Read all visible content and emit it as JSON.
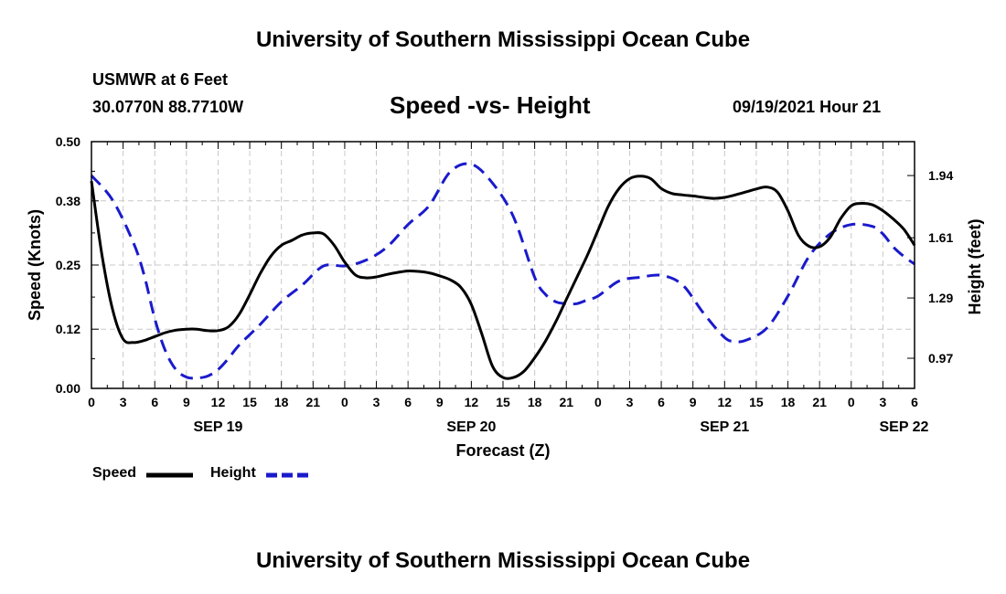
{
  "header": {
    "organization": "University of Southern Mississippi Ocean Cube",
    "station": "USMWR at 6 Feet",
    "coordinates": "30.0770N  88.7710W",
    "timestamp": "09/19/2021 Hour 21"
  },
  "footer": {
    "organization": "University of Southern Mississippi Ocean Cube"
  },
  "chart_data": {
    "type": "line",
    "title": "Speed -vs- Height",
    "xlabel": "Forecast (Z)",
    "ylabel": "Speed (Knots)",
    "y2label": "Height (feet)",
    "x_range_hours": [
      0,
      78
    ],
    "x_tick_labels": [
      "0",
      "3",
      "6",
      "9",
      "12",
      "15",
      "18",
      "21",
      "0",
      "3",
      "6",
      "9",
      "12",
      "15",
      "18",
      "21",
      "0",
      "3",
      "6",
      "9",
      "12",
      "15",
      "18",
      "21",
      "0",
      "3",
      "6"
    ],
    "x_tick_step_hours": 3,
    "date_labels": [
      {
        "label": "SEP 19",
        "hour": 12
      },
      {
        "label": "SEP 20",
        "hour": 36
      },
      {
        "label": "SEP 21",
        "hour": 60
      },
      {
        "label": "SEP 22",
        "hour": 77
      }
    ],
    "ylim": [
      0,
      0.5
    ],
    "y_ticks": [
      0.0,
      0.12,
      0.25,
      0.38,
      0.5
    ],
    "y_tick_labels": [
      "0.00",
      "0.12",
      "0.25",
      "0.38",
      "0.50"
    ],
    "y2lim": [
      0.81,
      2.12
    ],
    "y2_ticks": [
      0.97,
      1.29,
      1.61,
      1.94
    ],
    "y2_tick_labels": [
      "0.97",
      "1.29",
      "1.61",
      "1.94"
    ],
    "grid": true,
    "legend_position": "bottom-left",
    "series": [
      {
        "name": "Speed",
        "axis": "left",
        "color": "#000000",
        "dash": "solid",
        "x": [
          0,
          1,
          2,
          3,
          4,
          5,
          6,
          7,
          8,
          9,
          10,
          11,
          12,
          13,
          14,
          15,
          16,
          17,
          18,
          19,
          20,
          21,
          22,
          23,
          24,
          25,
          26,
          27,
          28,
          29,
          30,
          31,
          32,
          33,
          34,
          35,
          36,
          37,
          38,
          39,
          40,
          41,
          42,
          43,
          44,
          45,
          46,
          47,
          48,
          49,
          50,
          51,
          52,
          53,
          54,
          55,
          56,
          57,
          58,
          59,
          60,
          61,
          62,
          63,
          64,
          65,
          66,
          67,
          68,
          69,
          70,
          71,
          72,
          73,
          74,
          75,
          76,
          77,
          78
        ],
        "values": [
          0.42,
          0.27,
          0.16,
          0.1,
          0.093,
          0.097,
          0.105,
          0.113,
          0.118,
          0.12,
          0.12,
          0.117,
          0.117,
          0.125,
          0.15,
          0.19,
          0.233,
          0.268,
          0.29,
          0.3,
          0.311,
          0.315,
          0.313,
          0.29,
          0.256,
          0.23,
          0.224,
          0.226,
          0.231,
          0.235,
          0.238,
          0.237,
          0.234,
          0.228,
          0.22,
          0.205,
          0.17,
          0.11,
          0.045,
          0.022,
          0.022,
          0.035,
          0.062,
          0.095,
          0.135,
          0.18,
          0.225,
          0.27,
          0.32,
          0.37,
          0.405,
          0.425,
          0.43,
          0.425,
          0.405,
          0.395,
          0.392,
          0.39,
          0.387,
          0.385,
          0.387,
          0.392,
          0.398,
          0.404,
          0.408,
          0.398,
          0.36,
          0.31,
          0.288,
          0.287,
          0.306,
          0.344,
          0.37,
          0.375,
          0.372,
          0.36,
          0.343,
          0.322,
          0.29
        ]
      },
      {
        "name": "Height",
        "axis": "right",
        "color": "#1a1acc",
        "dash": "dashed",
        "x": [
          0,
          2,
          4,
          5,
          6,
          7,
          8,
          9,
          10,
          11,
          12,
          13,
          14,
          16,
          18,
          20,
          22,
          24,
          26,
          28,
          30,
          32,
          34,
          36,
          38,
          40,
          42,
          43,
          44,
          45,
          46,
          47,
          48,
          50,
          52,
          54,
          56,
          58,
          60,
          61,
          62,
          64,
          66,
          68,
          70,
          72,
          74,
          75,
          76,
          77,
          78
        ],
        "values": [
          1.94,
          1.81,
          1.58,
          1.41,
          1.18,
          1.01,
          0.91,
          0.87,
          0.865,
          0.875,
          0.91,
          0.97,
          1.04,
          1.15,
          1.27,
          1.36,
          1.46,
          1.46,
          1.49,
          1.56,
          1.68,
          1.78,
          1.96,
          2.0,
          1.9,
          1.72,
          1.4,
          1.31,
          1.27,
          1.26,
          1.26,
          1.28,
          1.3,
          1.38,
          1.4,
          1.41,
          1.36,
          1.21,
          1.08,
          1.06,
          1.065,
          1.13,
          1.3,
          1.51,
          1.63,
          1.68,
          1.67,
          1.63,
          1.56,
          1.51,
          1.47
        ]
      }
    ]
  }
}
